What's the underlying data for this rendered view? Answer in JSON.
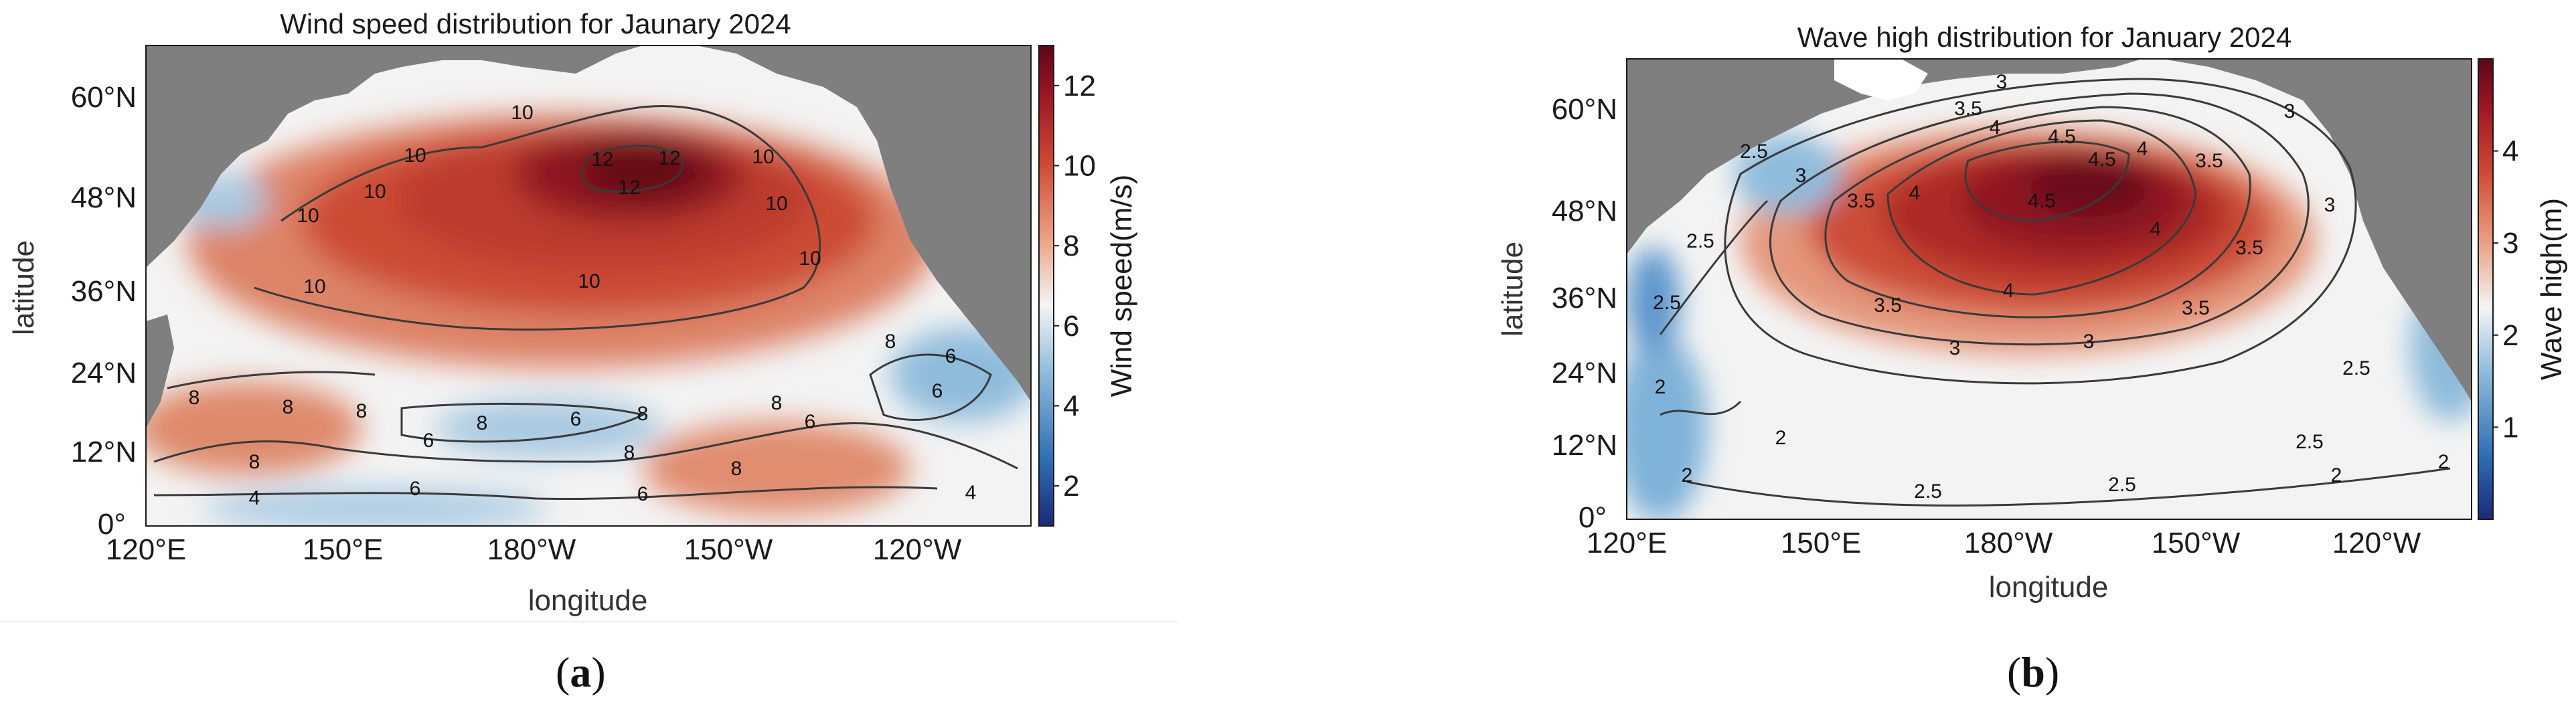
{
  "figure": {
    "panels": [
      {
        "id": "a",
        "caption": "a",
        "title": "Wind speed distribution for Jaunary 2024",
        "xlabel": "longitude",
        "ylabel": "latitude",
        "x_ticks": [
          "120°E",
          "150°E",
          "180°W",
          "150°W",
          "120°W"
        ],
        "y_ticks": [
          "60°N",
          "48°N",
          "36°N",
          "24°N",
          "12°N",
          "0°"
        ],
        "colorbar": {
          "label": "Wind speed(m/s)",
          "ticks": [
            "12",
            "10",
            "8",
            "6",
            "4",
            "2"
          ],
          "range": [
            1,
            13
          ],
          "colormap": [
            "#1a2a78",
            "#2f6fb5",
            "#8fbcdc",
            "#f4f4f4",
            "#eba184",
            "#cf4b34",
            "#9b1523",
            "#5c0715"
          ]
        },
        "contour_labels": [
          "12",
          "12",
          "12",
          "10",
          "10",
          "10",
          "10",
          "10",
          "10",
          "10",
          "10",
          "10",
          "8",
          "8",
          "8",
          "8",
          "8",
          "8",
          "8",
          "8",
          "8",
          "8",
          "6",
          "6",
          "6",
          "6",
          "6",
          "6",
          "6",
          "4",
          "4"
        ]
      },
      {
        "id": "b",
        "caption": "b",
        "title": "Wave high distribution for January 2024",
        "xlabel": "longitude",
        "ylabel": "latitude",
        "x_ticks": [
          "120°E",
          "150°E",
          "180°W",
          "150°W",
          "120°W"
        ],
        "y_ticks": [
          "60°N",
          "48°N",
          "36°N",
          "24°N",
          "12°N",
          "0°"
        ],
        "colorbar": {
          "label": "Wave high(m)",
          "ticks": [
            "4",
            "3",
            "2",
            "1"
          ],
          "range": [
            0,
            5
          ],
          "colormap": [
            "#1a2a78",
            "#2f6fb5",
            "#8fbcdc",
            "#f4f4f4",
            "#eba184",
            "#cf4b34",
            "#9b1523",
            "#5c0715"
          ]
        },
        "contour_labels": [
          "4.5",
          "4.5",
          "4.5",
          "4",
          "4",
          "4",
          "4",
          "4",
          "3.5",
          "3.5",
          "3.5",
          "3.5",
          "3.5",
          "3.5",
          "3",
          "3",
          "3",
          "3",
          "3",
          "3",
          "2.5",
          "2.5",
          "2.5",
          "2.5",
          "2.5",
          "2.5",
          "2.5",
          "2",
          "2",
          "2",
          "2",
          "2"
        ]
      }
    ],
    "colors": {
      "land": "#7f7f7f",
      "ocean_neutral": "#f2f2f2",
      "contour": "#3a3a3a"
    }
  }
}
